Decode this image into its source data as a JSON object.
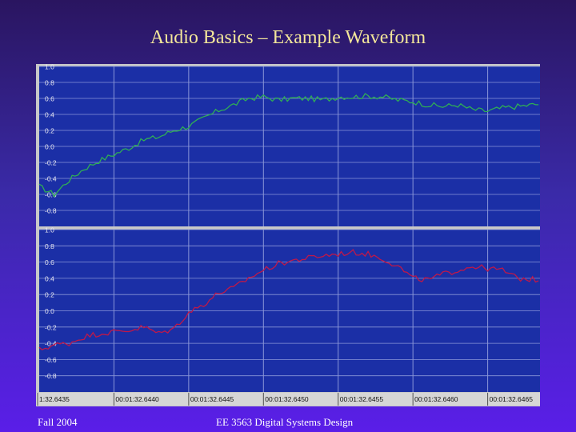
{
  "slide": {
    "title": "Audio Basics – Example Waveform",
    "footer_left": "Fall 2004",
    "footer_center": "EE 3563 Digital Systems Design"
  },
  "colors": {
    "panel_bg": "#1b2fa6",
    "grid": "#8a96d8",
    "top_wave": "#2fae55",
    "bottom_wave": "#c01848",
    "label": "#e6e6f0"
  },
  "chart_data": [
    {
      "type": "line",
      "channel": "top",
      "y_ticks": [
        "1.0",
        "0.8",
        "0.6",
        "0.4",
        "0.2",
        "0.0",
        "-0.2",
        "-0.4",
        "-0.6",
        "-0.8"
      ],
      "ylim": [
        -1.0,
        1.0
      ],
      "x_ticks": [
        "1:32.6435",
        "00:01:32.6440",
        "00:01:32.6445",
        "00:01:32.6450",
        "00:01:32.6455",
        "00:01:32.6460",
        "00:01:32.6465"
      ],
      "x_tick_values": [
        0.0,
        0.5,
        1.0,
        1.5,
        2.0,
        2.5,
        3.0
      ],
      "xlim": [
        0.0,
        3.35
      ],
      "series": [
        {
          "x": [
            0.0,
            0.1,
            0.2,
            0.3,
            0.4,
            0.5,
            0.6,
            0.7,
            0.8,
            0.9,
            1.0,
            1.1,
            1.2,
            1.3,
            1.4,
            1.5,
            1.6,
            1.7,
            1.8,
            1.9,
            2.0,
            2.1,
            2.2,
            2.3,
            2.4,
            2.5,
            2.6,
            2.7,
            2.8,
            2.9,
            3.0,
            3.1,
            3.2,
            3.35
          ],
          "y": [
            -0.5,
            -0.6,
            -0.42,
            -0.28,
            -0.18,
            -0.1,
            -0.02,
            0.08,
            0.12,
            0.2,
            0.25,
            0.35,
            0.45,
            0.52,
            0.6,
            0.62,
            0.58,
            0.6,
            0.6,
            0.58,
            0.62,
            0.62,
            0.63,
            0.62,
            0.58,
            0.56,
            0.52,
            0.5,
            0.52,
            0.46,
            0.44,
            0.48,
            0.5,
            0.53
          ]
        }
      ]
    },
    {
      "type": "line",
      "channel": "bottom",
      "y_ticks": [
        "1.0",
        "0.8",
        "0.6",
        "0.4",
        "0.2",
        "0.0",
        "-0.2",
        "-0.4",
        "-0.6",
        "-0.8"
      ],
      "ylim": [
        -1.0,
        1.0
      ],
      "series": [
        {
          "x": [
            0.0,
            0.1,
            0.2,
            0.3,
            0.4,
            0.5,
            0.6,
            0.7,
            0.8,
            0.9,
            1.0,
            1.1,
            1.2,
            1.3,
            1.4,
            1.5,
            1.6,
            1.7,
            1.8,
            1.9,
            2.0,
            2.1,
            2.2,
            2.3,
            2.4,
            2.5,
            2.6,
            2.7,
            2.8,
            2.9,
            3.0,
            3.1,
            3.2,
            3.35
          ],
          "y": [
            -0.48,
            -0.42,
            -0.4,
            -0.32,
            -0.28,
            -0.26,
            -0.24,
            -0.2,
            -0.28,
            -0.22,
            -0.02,
            0.08,
            0.22,
            0.28,
            0.4,
            0.5,
            0.58,
            0.62,
            0.65,
            0.68,
            0.7,
            0.72,
            0.7,
            0.64,
            0.55,
            0.4,
            0.38,
            0.45,
            0.5,
            0.55,
            0.52,
            0.5,
            0.4,
            0.38
          ]
        }
      ]
    }
  ]
}
